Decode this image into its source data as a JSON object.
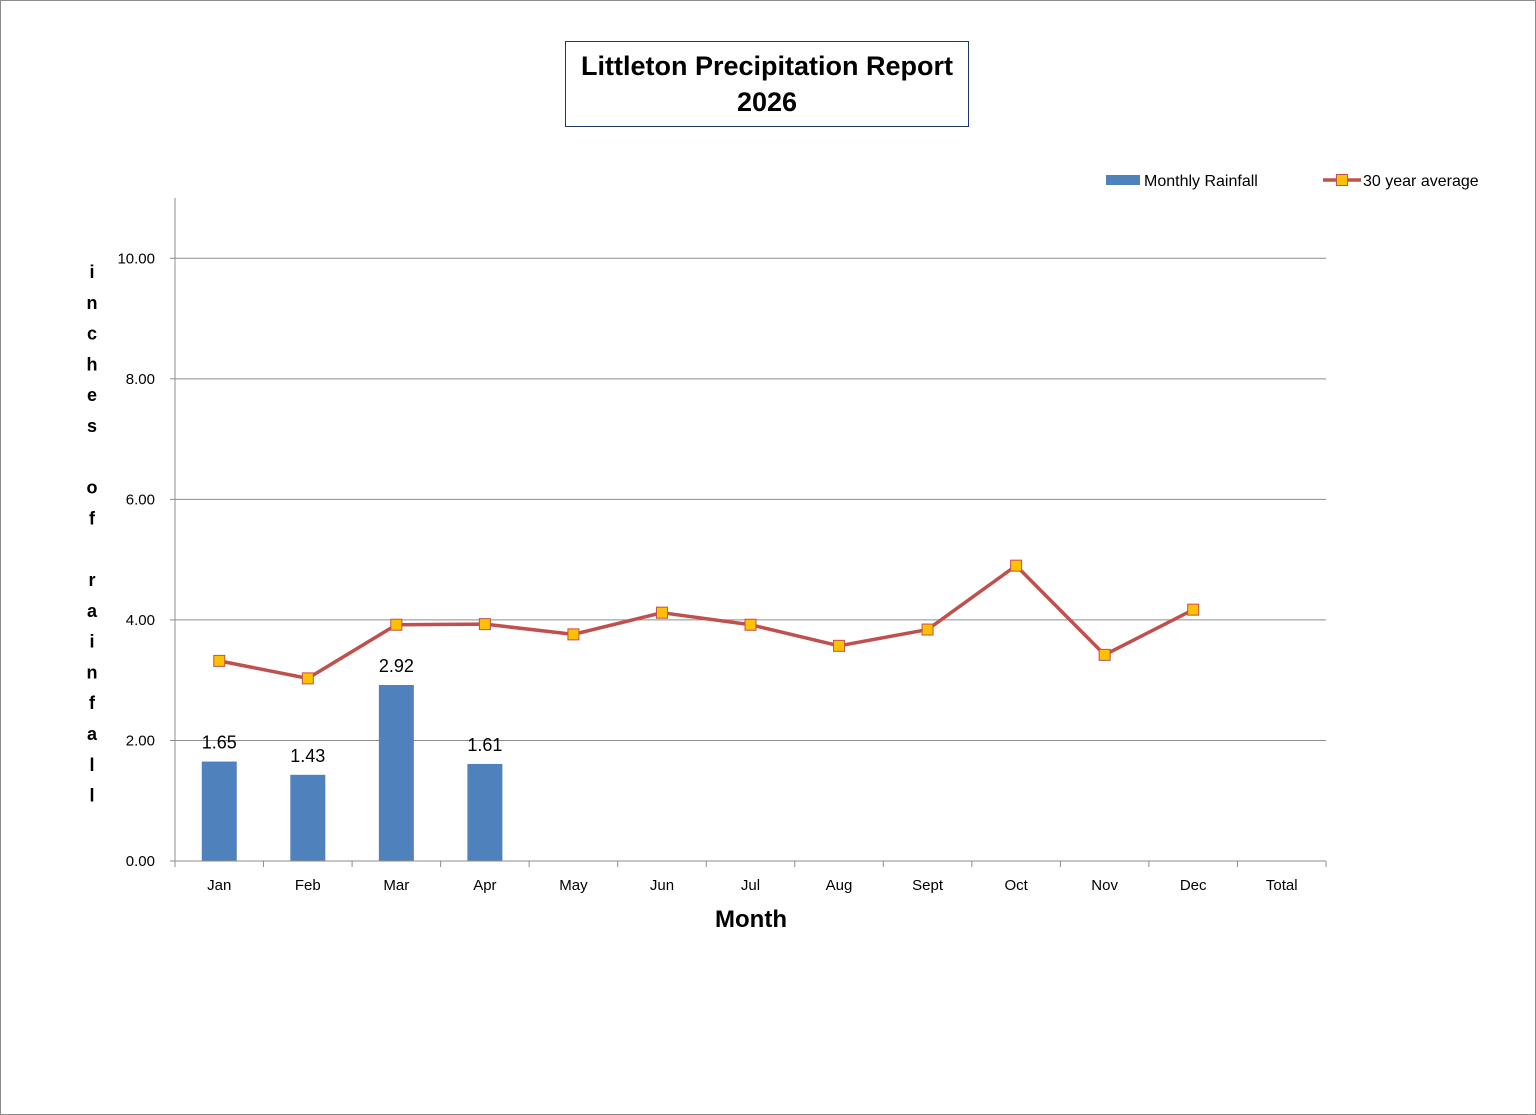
{
  "chart_data": {
    "type": "bar",
    "title_lines": [
      "Littleton Precipitation Report",
      "2026"
    ],
    "xlabel": "Month",
    "ylabel": "inches of rainfall",
    "ylim": [
      0,
      11
    ],
    "yticks": [
      0,
      2,
      4,
      6,
      8,
      10
    ],
    "ytick_labels": [
      "0.00",
      "2.00",
      "4.00",
      "6.00",
      "8.00",
      "10.00"
    ],
    "categories": [
      "Jan",
      "Feb",
      "Mar",
      "Apr",
      "May",
      "Jun",
      "Jul",
      "Aug",
      "Sept",
      "Oct",
      "Nov",
      "Dec",
      "Total"
    ],
    "series": [
      {
        "name": "Monthly Rainfall",
        "type": "bar",
        "color": "#4f81bd",
        "values": [
          1.65,
          1.43,
          2.92,
          1.61,
          null,
          null,
          null,
          null,
          null,
          null,
          null,
          null,
          null
        ],
        "data_labels": [
          "1.65",
          "1.43",
          "2.92",
          "1.61",
          "",
          "",
          "",
          "",
          "",
          "",
          "",
          "",
          ""
        ]
      },
      {
        "name": "30 year average",
        "type": "line",
        "color": "#c0504d",
        "marker_color": "#ffc000",
        "values": [
          3.32,
          3.03,
          3.92,
          3.93,
          3.76,
          4.12,
          3.92,
          3.57,
          3.84,
          4.9,
          3.42,
          4.17,
          null
        ]
      }
    ],
    "grid": true,
    "legend_position": "top-right"
  }
}
